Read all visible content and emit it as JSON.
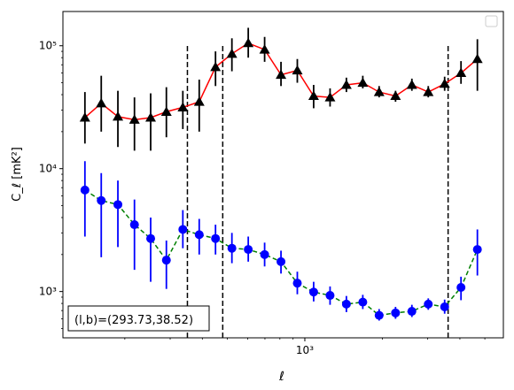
{
  "chart_data": {
    "type": "line",
    "title": "",
    "xlabel": "ℓ",
    "ylabel": "C_ℓ  [mK²]",
    "xscale": "log",
    "yscale": "log",
    "xlim": [
      115,
      5900
    ],
    "ylim": [
      420,
      190000
    ],
    "grid": false,
    "legend": "top-right",
    "x_ticks": [
      {
        "value": 1000,
        "label": "10³"
      }
    ],
    "y_ticks": [
      {
        "value": 1000,
        "label": "10³"
      },
      {
        "value": 10000,
        "label": "10⁴"
      },
      {
        "value": 100000,
        "label": "10⁵"
      }
    ],
    "annotation": "(l,b)=(293.73,38.52)",
    "vlines": [
      350,
      480,
      3600
    ],
    "vline_ymax": 100000,
    "series": [
      {
        "color": "#ff0000",
        "marker": "triangle",
        "marker_color": "#000000",
        "errorbar_color": "#000000",
        "linestyle": "solid",
        "points": [
          {
            "x": 140,
            "y": 26000,
            "lo": 16000,
            "hi": 42000
          },
          {
            "x": 162,
            "y": 34000,
            "lo": 20000,
            "hi": 57000
          },
          {
            "x": 188,
            "y": 26500,
            "lo": 15000,
            "hi": 43000
          },
          {
            "x": 218,
            "y": 25000,
            "lo": 14000,
            "hi": 38000
          },
          {
            "x": 252,
            "y": 26000,
            "lo": 14000,
            "hi": 41000
          },
          {
            "x": 290,
            "y": 29000,
            "lo": 18000,
            "hi": 46000
          },
          {
            "x": 336,
            "y": 31500,
            "lo": 21000,
            "hi": 43000
          },
          {
            "x": 389,
            "y": 35000,
            "lo": 20000,
            "hi": 53000
          },
          {
            "x": 450,
            "y": 67000,
            "lo": 47000,
            "hi": 90000
          },
          {
            "x": 521,
            "y": 86000,
            "lo": 62000,
            "hi": 115000
          },
          {
            "x": 603,
            "y": 105000,
            "lo": 80000,
            "hi": 140000
          },
          {
            "x": 698,
            "y": 93000,
            "lo": 74000,
            "hi": 118000
          },
          {
            "x": 808,
            "y": 58000,
            "lo": 47000,
            "hi": 74000
          },
          {
            "x": 935,
            "y": 63000,
            "lo": 50000,
            "hi": 78000
          },
          {
            "x": 1082,
            "y": 39000,
            "lo": 31000,
            "hi": 48000
          },
          {
            "x": 1253,
            "y": 38000,
            "lo": 32000,
            "hi": 45000
          },
          {
            "x": 1450,
            "y": 48000,
            "lo": 42000,
            "hi": 55000
          },
          {
            "x": 1679,
            "y": 50000,
            "lo": 45000,
            "hi": 57000
          },
          {
            "x": 1943,
            "y": 42000,
            "lo": 38000,
            "hi": 47000
          },
          {
            "x": 2250,
            "y": 39000,
            "lo": 35000,
            "hi": 43000
          },
          {
            "x": 2604,
            "y": 48000,
            "lo": 43000,
            "hi": 54000
          },
          {
            "x": 3015,
            "y": 42000,
            "lo": 38000,
            "hi": 47000
          },
          {
            "x": 3490,
            "y": 49000,
            "lo": 43000,
            "hi": 56000
          },
          {
            "x": 4040,
            "y": 60000,
            "lo": 49000,
            "hi": 75000
          },
          {
            "x": 4677,
            "y": 78000,
            "lo": 43000,
            "hi": 113000
          }
        ]
      },
      {
        "color": "#008000",
        "marker": "circle",
        "marker_color": "#0000ff",
        "errorbar_color": "#0000ff",
        "linestyle": "dashed",
        "points": [
          {
            "x": 140,
            "y": 6700,
            "lo": 2800,
            "hi": 11500
          },
          {
            "x": 162,
            "y": 5500,
            "lo": 1900,
            "hi": 9200
          },
          {
            "x": 188,
            "y": 5100,
            "lo": 2300,
            "hi": 8000
          },
          {
            "x": 218,
            "y": 3500,
            "lo": 1500,
            "hi": 5600
          },
          {
            "x": 252,
            "y": 2700,
            "lo": 1200,
            "hi": 4000
          },
          {
            "x": 290,
            "y": 1800,
            "lo": 1050,
            "hi": 2600
          },
          {
            "x": 336,
            "y": 3200,
            "lo": 2250,
            "hi": 4600
          },
          {
            "x": 389,
            "y": 2900,
            "lo": 2000,
            "hi": 3900
          },
          {
            "x": 450,
            "y": 2700,
            "lo": 2000,
            "hi": 3500
          },
          {
            "x": 521,
            "y": 2250,
            "lo": 1700,
            "hi": 3000
          },
          {
            "x": 603,
            "y": 2200,
            "lo": 1750,
            "hi": 2800
          },
          {
            "x": 698,
            "y": 2000,
            "lo": 1600,
            "hi": 2500
          },
          {
            "x": 808,
            "y": 1750,
            "lo": 1400,
            "hi": 2150
          },
          {
            "x": 935,
            "y": 1170,
            "lo": 950,
            "hi": 1450
          },
          {
            "x": 1082,
            "y": 990,
            "lo": 830,
            "hi": 1200
          },
          {
            "x": 1253,
            "y": 930,
            "lo": 780,
            "hi": 1100
          },
          {
            "x": 1450,
            "y": 790,
            "lo": 680,
            "hi": 920
          },
          {
            "x": 1679,
            "y": 820,
            "lo": 720,
            "hi": 940
          },
          {
            "x": 1943,
            "y": 640,
            "lo": 580,
            "hi": 720
          },
          {
            "x": 2250,
            "y": 670,
            "lo": 600,
            "hi": 750
          },
          {
            "x": 2604,
            "y": 690,
            "lo": 620,
            "hi": 780
          },
          {
            "x": 3015,
            "y": 790,
            "lo": 710,
            "hi": 880
          },
          {
            "x": 3490,
            "y": 750,
            "lo": 660,
            "hi": 860
          },
          {
            "x": 4040,
            "y": 1080,
            "lo": 850,
            "hi": 1320
          },
          {
            "x": 4677,
            "y": 2200,
            "lo": 1350,
            "hi": 3200
          }
        ]
      }
    ]
  }
}
